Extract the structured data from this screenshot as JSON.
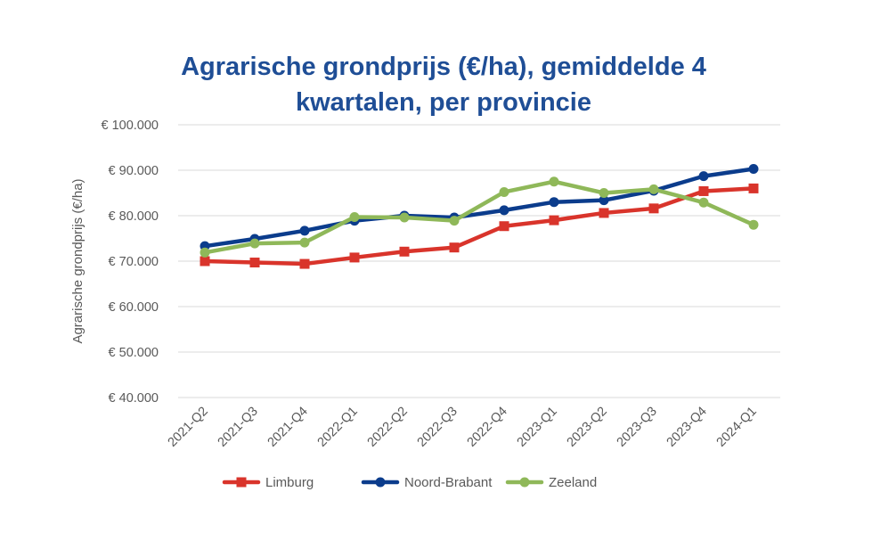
{
  "chart_data": {
    "type": "line",
    "title_lines": [
      "Agrarische grondprijs (€/ha), gemiddelde 4",
      "kwartalen, per provincie"
    ],
    "xlabel": "",
    "ylabel": "Agrarische grondprijs (€/ha)",
    "ylim": [
      40000,
      100000
    ],
    "ytick_values": [
      40000,
      50000,
      60000,
      70000,
      80000,
      90000,
      100000
    ],
    "ytick_labels": [
      "€ 40.000",
      "€ 50.000",
      "€ 60.000",
      "€ 70.000",
      "€ 80.000",
      "€ 90.000",
      "€ 100.000"
    ],
    "grid": true,
    "legend_position": "bottom",
    "categories": [
      "2021-Q2",
      "2021-Q3",
      "2021-Q4",
      "2022-Q1",
      "2022-Q2",
      "2022-Q3",
      "2022-Q4",
      "2023-Q1",
      "2023-Q2",
      "2023-Q3",
      "2023-Q4",
      "2024-Q1"
    ],
    "series": [
      {
        "name": "Limburg",
        "color": "#D9342B",
        "marker": "square",
        "values": [
          70000,
          69700,
          69400,
          70800,
          72100,
          73000,
          77700,
          79000,
          80600,
          81600,
          85400,
          86000
        ]
      },
      {
        "name": "Noord-Brabant",
        "color": "#0B3C8C",
        "marker": "circle",
        "values": [
          73300,
          74900,
          76700,
          78900,
          80000,
          79600,
          81200,
          83000,
          83400,
          85500,
          88700,
          90300
        ]
      },
      {
        "name": "Zeeland",
        "color": "#8FB859",
        "marker": "circle",
        "values": [
          71900,
          73900,
          74100,
          79700,
          79600,
          78900,
          85200,
          87500,
          85000,
          85800,
          82900,
          78000
        ]
      }
    ],
    "colors": {
      "title": "#1F4E96",
      "text": "#595959",
      "grid": "#D9D9D9"
    }
  }
}
